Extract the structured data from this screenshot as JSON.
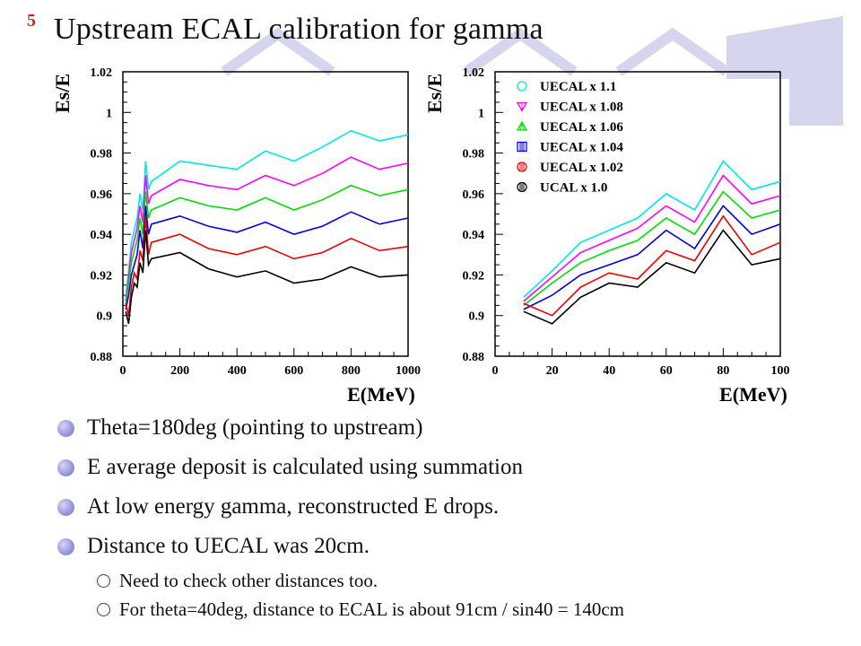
{
  "slide": {
    "number": "5",
    "title": "Upstream ECAL calibration for gamma"
  },
  "colors": {
    "decoration": "#d6d5ee",
    "number": "#c0282a",
    "bullet": "#9c98de"
  },
  "chart_data": [
    {
      "type": "line",
      "xlabel": "E(MeV)",
      "ylabel": "Es/E",
      "xlim": [
        0,
        1000
      ],
      "ylim": [
        0.88,
        1.02
      ],
      "xticks": [
        0,
        200,
        400,
        600,
        800,
        1000
      ],
      "yticks": [
        "0.88",
        "0.9",
        "0.92",
        "0.94",
        "0.96",
        "0.98",
        "1",
        "1.02"
      ],
      "x": [
        10,
        20,
        30,
        40,
        50,
        60,
        70,
        80,
        90,
        100,
        200,
        300,
        400,
        500,
        600,
        700,
        800,
        900,
        1000
      ],
      "series": [
        {
          "color": "#00e8e8",
          "values": [
            0.909,
            0.922,
            0.936,
            0.942,
            0.948,
            0.96,
            0.952,
            0.976,
            0.962,
            0.966,
            0.976,
            0.974,
            0.972,
            0.981,
            0.976,
            0.983,
            0.991,
            0.986,
            0.989
          ]
        },
        {
          "color": "#ff00ff",
          "values": [
            0.907,
            0.919,
            0.931,
            0.937,
            0.943,
            0.954,
            0.946,
            0.969,
            0.955,
            0.959,
            0.967,
            0.964,
            0.962,
            0.969,
            0.964,
            0.97,
            0.978,
            0.972,
            0.975
          ]
        },
        {
          "color": "#00dd00",
          "values": [
            0.905,
            0.916,
            0.926,
            0.932,
            0.937,
            0.948,
            0.94,
            0.961,
            0.948,
            0.952,
            0.958,
            0.954,
            0.952,
            0.958,
            0.952,
            0.957,
            0.964,
            0.959,
            0.962
          ]
        },
        {
          "color": "#0000dd",
          "values": [
            0.903,
            0.91,
            0.92,
            0.925,
            0.93,
            0.942,
            0.933,
            0.954,
            0.94,
            0.945,
            0.949,
            0.944,
            0.941,
            0.946,
            0.94,
            0.944,
            0.951,
            0.945,
            0.948
          ]
        },
        {
          "color": "#ee0000",
          "values": [
            0.906,
            0.9,
            0.914,
            0.921,
            0.918,
            0.932,
            0.927,
            0.949,
            0.93,
            0.936,
            0.94,
            0.933,
            0.93,
            0.934,
            0.928,
            0.931,
            0.938,
            0.932,
            0.934
          ]
        },
        {
          "color": "#000000",
          "values": [
            0.902,
            0.896,
            0.909,
            0.916,
            0.914,
            0.926,
            0.921,
            0.942,
            0.925,
            0.928,
            0.931,
            0.923,
            0.919,
            0.922,
            0.916,
            0.918,
            0.924,
            0.919,
            0.92
          ]
        }
      ]
    },
    {
      "type": "line",
      "xlabel": "E(MeV)",
      "ylabel": "Es/E",
      "xlim": [
        0,
        100
      ],
      "ylim": [
        0.88,
        1.02
      ],
      "xticks": [
        0,
        20,
        40,
        60,
        80,
        100
      ],
      "yticks": [
        "0.88",
        "0.9",
        "0.92",
        "0.94",
        "0.96",
        "0.98",
        "1",
        "1.02"
      ],
      "legend_position": "top-left",
      "x": [
        10,
        20,
        30,
        40,
        50,
        60,
        70,
        80,
        90,
        100
      ],
      "series": [
        {
          "name": "UECAL x 1.1",
          "color": "#00e8e8",
          "marker": "circle-open",
          "values": [
            0.909,
            0.922,
            0.936,
            0.942,
            0.948,
            0.96,
            0.952,
            0.976,
            0.962,
            0.966
          ]
        },
        {
          "name": "UECAL x 1.08",
          "color": "#ff00ff",
          "marker": "triangle-down",
          "values": [
            0.907,
            0.919,
            0.931,
            0.937,
            0.943,
            0.954,
            0.946,
            0.969,
            0.955,
            0.959
          ]
        },
        {
          "name": "UECAL x 1.06",
          "color": "#00dd00",
          "marker": "triangle-up",
          "values": [
            0.905,
            0.916,
            0.926,
            0.932,
            0.937,
            0.948,
            0.94,
            0.961,
            0.948,
            0.952
          ]
        },
        {
          "name": "UECAL x 1.04",
          "color": "#0000dd",
          "marker": "square-hatched",
          "values": [
            0.903,
            0.91,
            0.92,
            0.925,
            0.93,
            0.942,
            0.933,
            0.954,
            0.94,
            0.945
          ]
        },
        {
          "name": "UECAL x 1.02",
          "color": "#ee0000",
          "marker": "circle-hatched",
          "values": [
            0.906,
            0.9,
            0.914,
            0.921,
            0.918,
            0.932,
            0.927,
            0.949,
            0.93,
            0.936
          ]
        },
        {
          "name": "UCAL x 1.0",
          "color": "#000000",
          "marker": "circle-hatched",
          "values": [
            0.902,
            0.896,
            0.909,
            0.916,
            0.914,
            0.926,
            0.921,
            0.942,
            0.925,
            0.928
          ]
        }
      ]
    }
  ],
  "bullets": [
    "Theta=180deg (pointing to upstream)",
    "E average deposit is calculated using summation",
    "At low energy gamma, reconstructed E drops.",
    "Distance to UECAL was 20cm."
  ],
  "sub_bullets": [
    "Need to check other distances too.",
    "For theta=40deg, distance to ECAL is about 91cm / sin40 = 140cm"
  ]
}
